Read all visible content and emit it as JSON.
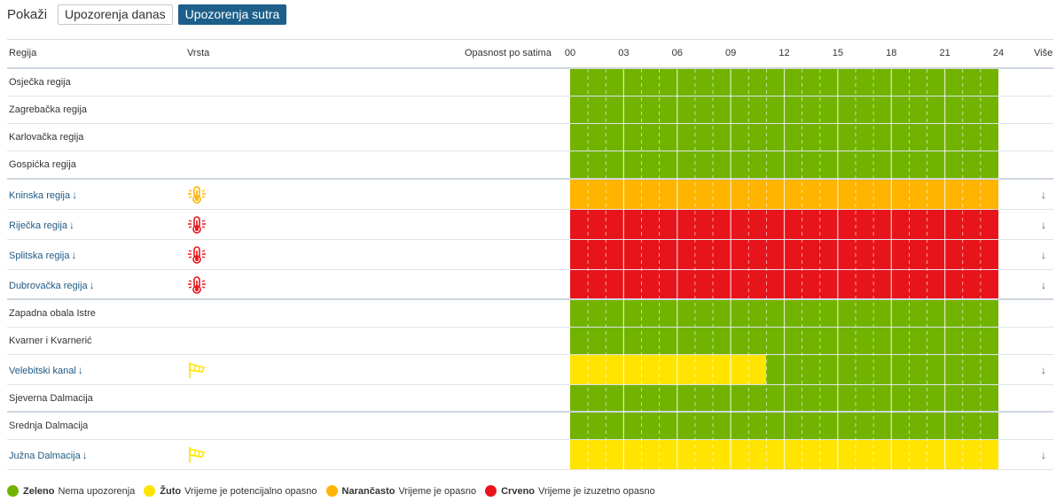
{
  "toolbar": {
    "label": "Pokaži",
    "buttons": [
      "Upozorenja danas",
      "Upozorenja sutra"
    ],
    "active_index": 1
  },
  "header": {
    "region": "Regija",
    "type": "Vrsta",
    "hazard": "Opasnost po satima",
    "hours": [
      "00",
      "03",
      "06",
      "09",
      "12",
      "15",
      "18",
      "21",
      "24"
    ],
    "more": "Više"
  },
  "colors": {
    "green": "#72b300",
    "yellow": "#ffe400",
    "orange": "#ffb400",
    "red": "#e8141c",
    "link": "#1f5a85"
  },
  "rows": [
    {
      "name": "Osječka regija",
      "link": false,
      "icon": "",
      "segments": [
        [
          "green",
          0,
          24
        ]
      ]
    },
    {
      "name": "Zagrebačka regija",
      "link": false,
      "icon": "",
      "segments": [
        [
          "green",
          0,
          24
        ]
      ]
    },
    {
      "name": "Karlovačka regija",
      "link": false,
      "icon": "",
      "segments": [
        [
          "green",
          0,
          24
        ]
      ]
    },
    {
      "name": "Gospićka regija",
      "link": false,
      "icon": "",
      "segments": [
        [
          "green",
          0,
          24
        ]
      ]
    },
    {
      "name": "Kninska regija",
      "link": true,
      "icon": "thermometer-heat-icon",
      "icon_color": "#ffb400",
      "segments": [
        [
          "orange",
          0,
          24
        ]
      ]
    },
    {
      "name": "Riječka regija",
      "link": true,
      "icon": "thermometer-heat-icon",
      "icon_color": "#e8141c",
      "segments": [
        [
          "red",
          0,
          24
        ]
      ]
    },
    {
      "name": "Splitska regija",
      "link": true,
      "icon": "thermometer-heat-icon",
      "icon_color": "#e8141c",
      "segments": [
        [
          "red",
          0,
          24
        ]
      ]
    },
    {
      "name": "Dubrovačka regija",
      "link": true,
      "icon": "thermometer-heat-icon",
      "icon_color": "#e8141c",
      "segments": [
        [
          "red",
          0,
          24
        ]
      ]
    },
    {
      "name": "Zapadna obala Istre",
      "link": false,
      "icon": "",
      "segments": [
        [
          "green",
          0,
          24
        ]
      ]
    },
    {
      "name": "Kvarner i Kvarnerić",
      "link": false,
      "icon": "",
      "segments": [
        [
          "green",
          0,
          24
        ]
      ]
    },
    {
      "name": "Velebitski kanal",
      "link": true,
      "icon": "windsock-icon",
      "icon_color": "#ffe400",
      "segments": [
        [
          "yellow",
          0,
          11
        ],
        [
          "green",
          11,
          24
        ]
      ]
    },
    {
      "name": "Sjeverna Dalmacija",
      "link": false,
      "icon": "",
      "segments": [
        [
          "green",
          0,
          24
        ]
      ]
    },
    {
      "name": "Srednja Dalmacija",
      "link": false,
      "icon": "",
      "segments": [
        [
          "green",
          0,
          24
        ]
      ]
    },
    {
      "name": "Južna Dalmacija",
      "link": true,
      "icon": "windsock-icon",
      "icon_color": "#ffe400",
      "segments": [
        [
          "yellow",
          0,
          24
        ]
      ]
    }
  ],
  "legend": [
    {
      "color": "#72b300",
      "name": "Zeleno",
      "desc": "Nema upozorenja"
    },
    {
      "color": "#ffe400",
      "name": "Žuto",
      "desc": "Vrijeme je potencijalno opasno"
    },
    {
      "color": "#ffb400",
      "name": "Narančasto",
      "desc": "Vrijeme je opasno"
    },
    {
      "color": "#e8141c",
      "name": "Crveno",
      "desc": "Vrijeme je izuzetno opasno"
    }
  ]
}
